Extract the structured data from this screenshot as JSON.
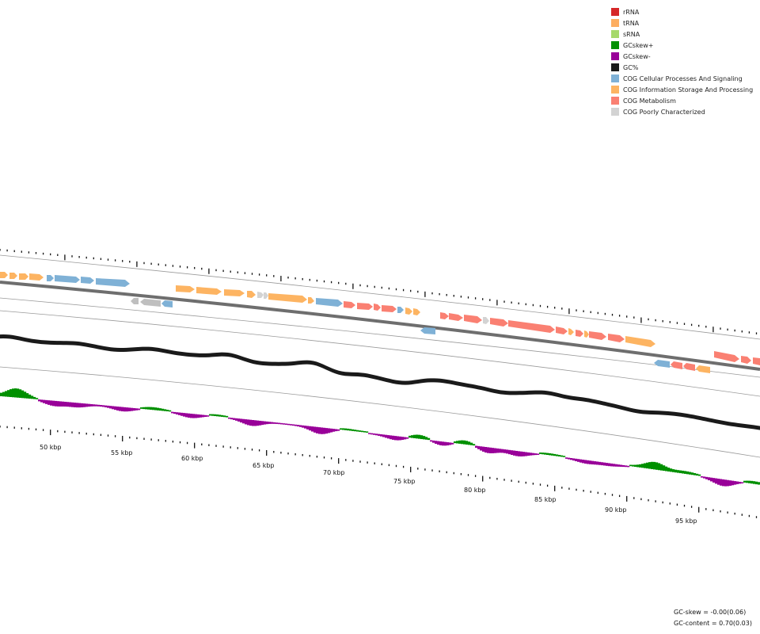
{
  "legend": [
    {
      "label": "rRNA",
      "color": "#d62728"
    },
    {
      "label": "tRNA",
      "color": "#fdae61"
    },
    {
      "label": "sRNA",
      "color": "#a6d96a"
    },
    {
      "label": "GCskew+",
      "color": "#009000"
    },
    {
      "label": "GCskew-",
      "color": "#990099"
    },
    {
      "label": "GC%",
      "color": "#1a1a1a"
    },
    {
      "label": "COG Cellular Processes And Signaling",
      "color": "#7fb1d6"
    },
    {
      "label": "COG Information Storage And Processing",
      "color": "#fdb462"
    },
    {
      "label": "COG Metabolism",
      "color": "#fa8072"
    },
    {
      "label": "COG Poorly Characterized",
      "color": "#d3d3d3"
    }
  ],
  "stats": {
    "gc_skew": "GC-skew = -0.00(0.06)",
    "gc_content": "GC-content = 0.70(0.03)"
  },
  "kbp_labels": [
    "50 kbp",
    "55 kbp",
    "60 kbp",
    "65 kbp",
    "70 kbp",
    "75 kbp",
    "80 kbp",
    "85 kbp",
    "90 kbp",
    "95 kbp"
  ]
}
